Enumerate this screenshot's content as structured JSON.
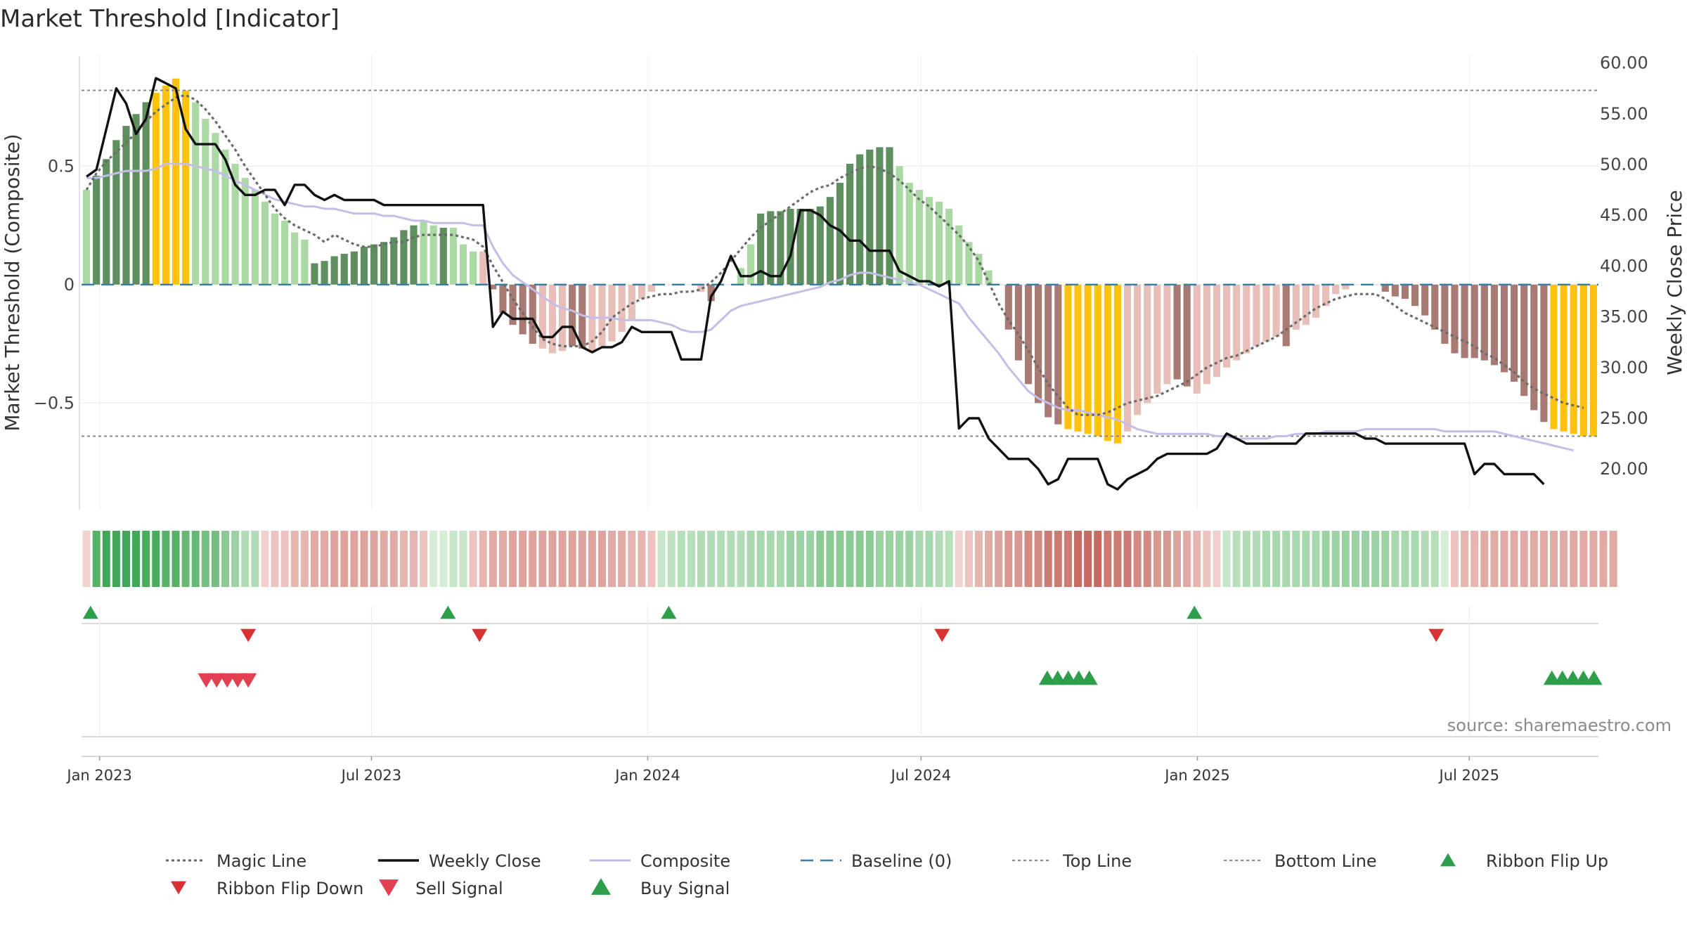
{
  "title": "Market Threshold [Indicator]",
  "source": "source: sharemaestro.com",
  "chart_data": {
    "type": "bar",
    "title": "Market Threshold [Indicator]",
    "ylabel": "Market Threshold (Composite)",
    "y2label": "Weekly Close Price",
    "ylim": [
      -0.95,
      0.97
    ],
    "y2lim": [
      16.0,
      60.8
    ],
    "yticks": [
      {
        "value": 0.5,
        "label": "0.5"
      },
      {
        "value": 0,
        "label": "0"
      },
      {
        "value": -0.5,
        "label": "−0.5"
      }
    ],
    "y2ticks": [
      {
        "value": 60,
        "label": "60.00"
      },
      {
        "value": 55,
        "label": "55.00"
      },
      {
        "value": 50,
        "label": "50.00"
      },
      {
        "value": 45,
        "label": "45.00"
      },
      {
        "value": 40,
        "label": "40.00"
      },
      {
        "value": 35,
        "label": "35.00"
      },
      {
        "value": 30,
        "label": "30.00"
      },
      {
        "value": 25,
        "label": "25.00"
      },
      {
        "value": 20,
        "label": "20.00"
      }
    ],
    "xticks": [
      {
        "date": "2023-01-01",
        "label": "Jan 2023"
      },
      {
        "date": "2023-07-01",
        "label": "Jul 2023"
      },
      {
        "date": "2024-01-01",
        "label": "Jan 2024"
      },
      {
        "date": "2024-07-01",
        "label": "Jul 2024"
      },
      {
        "date": "2025-01-01",
        "label": "Jan 2025"
      },
      {
        "date": "2025-07-01",
        "label": "Jul 2025"
      }
    ],
    "x_start": "2022-12-20",
    "x_end": "2025-09-25",
    "top_line": 0.82,
    "bottom_line": -0.64,
    "baseline": 0,
    "composite_bars": [
      0.4,
      0.46,
      0.53,
      0.61,
      0.67,
      0.72,
      0.77,
      0.81,
      0.84,
      0.87,
      0.82,
      0.77,
      0.7,
      0.64,
      0.57,
      0.51,
      0.45,
      0.4,
      0.35,
      0.3,
      0.27,
      0.22,
      0.19,
      0.09,
      0.1,
      0.12,
      0.13,
      0.14,
      0.16,
      0.17,
      0.18,
      0.2,
      0.23,
      0.25,
      0.27,
      0.25,
      0.24,
      0.24,
      0.17,
      0.14,
      0.14,
      -0.02,
      -0.12,
      -0.17,
      -0.21,
      -0.25,
      -0.27,
      -0.29,
      -0.28,
      -0.26,
      -0.27,
      -0.28,
      -0.26,
      -0.24,
      -0.2,
      -0.15,
      -0.06,
      -0.03,
      0,
      0,
      0,
      0,
      -0.03,
      -0.07,
      0,
      0,
      0.07,
      0.17,
      0.3,
      0.31,
      0.31,
      0.32,
      0.32,
      0.32,
      0.33,
      0.37,
      0.43,
      0.51,
      0.55,
      0.57,
      0.58,
      0.58,
      0.5,
      0.43,
      0.4,
      0.37,
      0.35,
      0.32,
      0.25,
      0.18,
      0.13,
      0.06,
      0,
      -0.19,
      -0.32,
      -0.42,
      -0.5,
      -0.56,
      -0.59,
      -0.61,
      -0.62,
      -0.63,
      -0.64,
      -0.66,
      -0.67,
      -0.62,
      -0.55,
      -0.5,
      -0.46,
      -0.42,
      -0.4,
      -0.43,
      -0.46,
      -0.42,
      -0.39,
      -0.35,
      -0.32,
      -0.29,
      -0.26,
      -0.24,
      -0.22,
      -0.26,
      -0.19,
      -0.17,
      -0.14,
      -0.09,
      -0.04,
      -0.02,
      0,
      0,
      0,
      -0.03,
      -0.05,
      -0.06,
      -0.09,
      -0.13,
      -0.19,
      -0.25,
      -0.29,
      -0.31,
      -0.31,
      -0.32,
      -0.34,
      -0.37,
      -0.41,
      -0.47,
      -0.53,
      -0.58,
      -0.61,
      -0.62,
      -0.63,
      -0.64,
      -0.64
    ],
    "bar_colors": [
      "#abd9a4",
      "#5f8f5f",
      "#5f8f5f",
      "#5f8f5f",
      "#5f8f5f",
      "#5f8f5f",
      "#5f8f5f",
      "#ffc20e",
      "#ffc20e",
      "#ffc20e",
      "#ffc20e",
      "#abd9a4",
      "#abd9a4",
      "#abd9a4",
      "#abd9a4",
      "#abd9a4",
      "#abd9a4",
      "#abd9a4",
      "#abd9a4",
      "#abd9a4",
      "#abd9a4",
      "#abd9a4",
      "#abd9a4",
      "#5f8f5f",
      "#5f8f5f",
      "#5f8f5f",
      "#5f8f5f",
      "#5f8f5f",
      "#5f8f5f",
      "#5f8f5f",
      "#5f8f5f",
      "#5f8f5f",
      "#5f8f5f",
      "#5f8f5f",
      "#abd9a4",
      "#abd9a4",
      "#5f8f5f",
      "#abd9a4",
      "#abd9a4",
      "#abd9a4",
      "#e8bfb8",
      "#a87a74",
      "#a87a74",
      "#a87a74",
      "#a87a74",
      "#a87a74",
      "#e8bfb8",
      "#e8bfb8",
      "#e8bfb8",
      "#a87a74",
      "#a87a74",
      "#e8bfb8",
      "#e8bfb8",
      "#e8bfb8",
      "#e8bfb8",
      "#e8bfb8",
      "#e8bfb8",
      "#e8bfb8",
      "#e8bfb8",
      "#e8bfb8",
      "#e8bfb8",
      "#e8bfb8",
      "#e8bfb8",
      "#a87a74",
      "#abd9a4",
      "#abd9a4",
      "#abd9a4",
      "#abd9a4",
      "#5f8f5f",
      "#5f8f5f",
      "#5f8f5f",
      "#5f8f5f",
      "#5f8f5f",
      "#5f8f5f",
      "#5f8f5f",
      "#5f8f5f",
      "#5f8f5f",
      "#5f8f5f",
      "#5f8f5f",
      "#5f8f5f",
      "#5f8f5f",
      "#5f8f5f",
      "#abd9a4",
      "#abd9a4",
      "#abd9a4",
      "#abd9a4",
      "#abd9a4",
      "#abd9a4",
      "#abd9a4",
      "#abd9a4",
      "#abd9a4",
      "#abd9a4",
      "#e8bfb8",
      "#a87a74",
      "#a87a74",
      "#a87a74",
      "#a87a74",
      "#a87a74",
      "#a87a74",
      "#ffc20e",
      "#ffc20e",
      "#ffc20e",
      "#ffc20e",
      "#ffc20e",
      "#ffc20e",
      "#e8bfb8",
      "#e8bfb8",
      "#e8bfb8",
      "#e8bfb8",
      "#e8bfb8",
      "#a87a74",
      "#a87a74",
      "#e8bfb8",
      "#e8bfb8",
      "#e8bfb8",
      "#e8bfb8",
      "#e8bfb8",
      "#e8bfb8",
      "#e8bfb8",
      "#e8bfb8",
      "#e8bfb8",
      "#a87a74",
      "#e8bfb8",
      "#e8bfb8",
      "#e8bfb8",
      "#e8bfb8",
      "#e8bfb8",
      "#e8bfb8",
      "#e8bfb8",
      "#e8bfb8",
      "#e8bfb8",
      "#a87a74",
      "#a87a74",
      "#a87a74",
      "#a87a74",
      "#a87a74",
      "#a87a74",
      "#a87a74",
      "#a87a74",
      "#a87a74",
      "#a87a74",
      "#a87a74",
      "#a87a74",
      "#a87a74",
      "#a87a74",
      "#a87a74",
      "#a87a74",
      "#a87a74",
      "#ffc20e",
      "#ffc20e",
      "#ffc20e",
      "#ffc20e",
      "#ffc20e"
    ],
    "weekly_close": [
      48.8,
      49.5,
      53.5,
      57.5,
      56.0,
      53.0,
      54.5,
      58.5,
      58.0,
      57.5,
      53.5,
      52.0,
      52.0,
      52.0,
      50.5,
      48.0,
      47.0,
      47.0,
      47.5,
      47.5,
      46.0,
      48.0,
      48.0,
      47.0,
      46.5,
      47.0,
      46.5,
      46.5,
      46.5,
      46.5,
      46.0,
      46.0,
      46.0,
      46.0,
      46.0,
      46.0,
      46.0,
      46.0,
      46.0,
      46.0,
      46.0,
      34.0,
      35.5,
      34.8,
      34.8,
      34.8,
      33.0,
      33.0,
      34.0,
      34.0,
      32.0,
      31.5,
      32.0,
      32.0,
      32.5,
      34.0,
      33.5,
      33.5,
      33.5,
      33.5,
      30.8,
      30.8,
      30.8,
      37.0,
      38.5,
      41.0,
      39.0,
      39.0,
      39.5,
      39.0,
      39.0,
      41.0,
      45.5,
      45.5,
      45.0,
      44.0,
      43.5,
      42.5,
      42.5,
      41.5,
      41.5,
      41.5,
      39.5,
      39.0,
      38.5,
      38.5,
      38.0,
      38.5,
      24.0,
      25.0,
      25.0,
      23.0,
      22.0,
      21.0,
      21.0,
      21.0,
      20.0,
      18.5,
      19.0,
      21.0,
      21.0,
      21.0,
      21.0,
      18.5,
      18.0,
      19.0,
      19.5,
      20.0,
      21.0,
      21.5,
      21.5,
      21.5,
      21.5,
      21.5,
      22.0,
      23.5,
      23.0,
      22.5,
      22.5,
      22.5,
      22.5,
      22.5,
      22.5,
      23.5,
      23.5,
      23.5,
      23.5,
      23.5,
      23.5,
      23.0,
      23.0,
      22.5,
      22.5,
      22.5,
      22.5,
      22.5,
      22.5,
      22.5,
      22.5,
      22.5,
      19.5,
      20.5,
      20.5,
      19.5,
      19.5,
      19.5,
      19.5,
      18.5
    ],
    "magic_line": [
      0.4,
      0.47,
      0.52,
      0.56,
      0.6,
      0.64,
      0.69,
      0.73,
      0.76,
      0.79,
      0.8,
      0.78,
      0.74,
      0.69,
      0.63,
      0.57,
      0.5,
      0.44,
      0.38,
      0.32,
      0.28,
      0.25,
      0.23,
      0.21,
      0.18,
      0.21,
      0.19,
      0.17,
      0.16,
      0.16,
      0.17,
      0.18,
      0.18,
      0.2,
      0.21,
      0.21,
      0.21,
      0.21,
      0.2,
      0.19,
      0.16,
      0.08,
      0.01,
      -0.06,
      -0.12,
      -0.18,
      -0.23,
      -0.25,
      -0.26,
      -0.26,
      -0.26,
      -0.24,
      -0.2,
      -0.14,
      -0.11,
      -0.08,
      -0.06,
      -0.05,
      -0.04,
      -0.04,
      -0.03,
      -0.03,
      -0.02,
      0.01,
      0.05,
      0.1,
      0.15,
      0.2,
      0.24,
      0.27,
      0.3,
      0.33,
      0.36,
      0.39,
      0.41,
      0.42,
      0.45,
      0.47,
      0.49,
      0.5,
      0.49,
      0.47,
      0.44,
      0.4,
      0.36,
      0.33,
      0.29,
      0.25,
      0.21,
      0.16,
      0.1,
      0.01,
      -0.08,
      -0.15,
      -0.21,
      -0.28,
      -0.35,
      -0.42,
      -0.47,
      -0.52,
      -0.55,
      -0.55,
      -0.55,
      -0.54,
      -0.52,
      -0.5,
      -0.49,
      -0.48,
      -0.47,
      -0.45,
      -0.43,
      -0.41,
      -0.38,
      -0.35,
      -0.33,
      -0.31,
      -0.3,
      -0.28,
      -0.26,
      -0.24,
      -0.22,
      -0.19,
      -0.16,
      -0.13,
      -0.1,
      -0.08,
      -0.06,
      -0.05,
      -0.04,
      -0.04,
      -0.04,
      -0.06,
      -0.09,
      -0.12,
      -0.14,
      -0.16,
      -0.18,
      -0.2,
      -0.22,
      -0.24,
      -0.26,
      -0.29,
      -0.31,
      -0.34,
      -0.37,
      -0.41,
      -0.44,
      -0.46,
      -0.48,
      -0.5,
      -0.51,
      -0.52
    ],
    "composite_line": [
      0.45,
      0.45,
      0.46,
      0.47,
      0.48,
      0.48,
      0.48,
      0.49,
      0.51,
      0.51,
      0.51,
      0.5,
      0.49,
      0.48,
      0.46,
      0.44,
      0.42,
      0.4,
      0.38,
      0.36,
      0.35,
      0.34,
      0.33,
      0.33,
      0.32,
      0.32,
      0.31,
      0.3,
      0.3,
      0.3,
      0.29,
      0.29,
      0.28,
      0.27,
      0.27,
      0.26,
      0.26,
      0.26,
      0.26,
      0.25,
      0.25,
      0.16,
      0.09,
      0.04,
      0.01,
      -0.02,
      -0.05,
      -0.08,
      -0.1,
      -0.11,
      -0.13,
      -0.14,
      -0.14,
      -0.14,
      -0.15,
      -0.15,
      -0.15,
      -0.15,
      -0.16,
      -0.17,
      -0.19,
      -0.2,
      -0.2,
      -0.19,
      -0.15,
      -0.11,
      -0.09,
      -0.08,
      -0.07,
      -0.06,
      -0.05,
      -0.04,
      -0.03,
      -0.02,
      -0.01,
      0.01,
      0.02,
      0.04,
      0.05,
      0.05,
      0.04,
      0.03,
      0.02,
      0.01,
      0.0,
      -0.02,
      -0.04,
      -0.06,
      -0.08,
      -0.14,
      -0.19,
      -0.24,
      -0.29,
      -0.35,
      -0.4,
      -0.45,
      -0.48,
      -0.5,
      -0.52,
      -0.53,
      -0.53,
      -0.54,
      -0.55,
      -0.56,
      -0.57,
      -0.59,
      -0.61,
      -0.62,
      -0.63,
      -0.63,
      -0.63,
      -0.63,
      -0.63,
      -0.63,
      -0.64,
      -0.64,
      -0.65,
      -0.65,
      -0.65,
      -0.65,
      -0.64,
      -0.64,
      -0.63,
      -0.63,
      -0.63,
      -0.62,
      -0.62,
      -0.62,
      -0.62,
      -0.61,
      -0.61,
      -0.61,
      -0.61,
      -0.61,
      -0.61,
      -0.61,
      -0.61,
      -0.62,
      -0.62,
      -0.62,
      -0.62,
      -0.62,
      -0.62,
      -0.63,
      -0.64,
      -0.65,
      -0.66,
      -0.67,
      -0.68,
      -0.69,
      -0.7
    ],
    "ribbon_colors": [
      "#f2d3d0",
      "#57b267",
      "#41a656",
      "#41a656",
      "#41a656",
      "#41a656",
      "#49ab5c",
      "#49ab5c",
      "#57b267",
      "#57b267",
      "#66b974",
      "#66b974",
      "#73bf80",
      "#73bf80",
      "#8bca95",
      "#9bd2a3",
      "#b1dcb7",
      "#b1dcb7",
      "#f1d0cc",
      "#ecc3be",
      "#ecc3be",
      "#e6b5b0",
      "#e6b5b0",
      "#e1aaa4",
      "#e1aaa4",
      "#dea39d",
      "#dea39d",
      "#dea39d",
      "#dea39d",
      "#dea39d",
      "#e1aaa4",
      "#e1aaa4",
      "#e6b5b0",
      "#e6b5b0",
      "#ecc3be",
      "#d5ecd6",
      "#d5ecd6",
      "#c7e5c9",
      "#c7e5c9",
      "#ecc3be",
      "#e6b5b0",
      "#e1aaa4",
      "#e1aaa4",
      "#dea39d",
      "#dea39d",
      "#dea39d",
      "#dea39d",
      "#dea39d",
      "#dea39d",
      "#dea39d",
      "#dea39d",
      "#dea39d",
      "#dea39d",
      "#e1aaa4",
      "#e1aaa4",
      "#e6b5b0",
      "#e6b5b0",
      "#ecc3be",
      "#c7e5c9",
      "#bfe2c2",
      "#b6dfba",
      "#b6dfba",
      "#b1dcb7",
      "#b1dcb7",
      "#b1dcb7",
      "#b1dcb7",
      "#b1dcb7",
      "#a8d8ae",
      "#a8d8ae",
      "#a8d8ae",
      "#a8d8ae",
      "#9bd2a3",
      "#9bd2a3",
      "#9bd2a3",
      "#8bca95",
      "#8bca95",
      "#8bca95",
      "#8bca95",
      "#8bca95",
      "#8bca95",
      "#9bd2a3",
      "#9bd2a3",
      "#9bd2a3",
      "#9bd2a3",
      "#a8d8ae",
      "#a8d8ae",
      "#b1dcb7",
      "#b6dfba",
      "#f2d3d0",
      "#ecc3be",
      "#e6b5b0",
      "#e1aaa4",
      "#dea39d",
      "#d99791",
      "#d99791",
      "#d38a83",
      "#d38a83",
      "#cc7b73",
      "#cc7b73",
      "#cc7b73",
      "#c56b62",
      "#c56b62",
      "#c56b62",
      "#cc7b73",
      "#cc7b73",
      "#cc7b73",
      "#d38a83",
      "#d38a83",
      "#d99791",
      "#d99791",
      "#dea39d",
      "#e1aaa4",
      "#e6b5b0",
      "#ecc3be",
      "#f1d0cc",
      "#c7e5c9",
      "#b6dfba",
      "#b1dcb7",
      "#b1dcb7",
      "#a8d8ae",
      "#a8d8ae",
      "#a8d8ae",
      "#a8d8ae",
      "#a8d8ae",
      "#a8d8ae",
      "#9bd2a3",
      "#9bd2a3",
      "#9bd2a3",
      "#9bd2a3",
      "#9bd2a3",
      "#9bd2a3",
      "#9bd2a3",
      "#a8d8ae",
      "#a8d8ae",
      "#a8d8ae",
      "#b1dcb7",
      "#b6dfba",
      "#d5ecd6",
      "#ecc3be",
      "#e6b5b0",
      "#e6b5b0",
      "#e1aaa4",
      "#e1aaa4",
      "#e1aaa4",
      "#e1aaa4",
      "#e1aaa4",
      "#e1aaa4",
      "#e1aaa4",
      "#e1aaa4",
      "#e1aaa4",
      "#e1aaa4",
      "#e1aaa4",
      "#e1aaa4",
      "#e1aaa4",
      "#e1aaa4"
    ],
    "ribbon_flip_up": [
      "2022-12-26",
      "2023-08-21",
      "2024-01-15",
      "2024-12-30"
    ],
    "ribbon_flip_down": [
      "2023-04-10",
      "2023-09-11",
      "2024-07-15",
      "2025-06-09"
    ],
    "sell_signal": [
      "2023-03-13",
      "2023-03-20",
      "2023-03-27",
      "2023-04-03",
      "2023-04-10"
    ],
    "buy_signal": [
      "2024-09-23",
      "2024-09-30",
      "2024-10-07",
      "2024-10-14",
      "2024-10-21",
      "2025-08-25",
      "2025-09-01",
      "2025-09-08",
      "2025-09-15",
      "2025-09-22"
    ],
    "colors": {
      "bull_strong": "#5f8f5f",
      "bull_weak": "#abd9a4",
      "bear_strong": "#a87a74",
      "bear_weak": "#e8bfb8",
      "extreme": "#ffc20e",
      "weekly_close": "#111111",
      "composite": "#c4bde6",
      "magic_line": "#6b6b6b",
      "baseline": "#3b7ea1",
      "threshold_lines": "#8a8a8a",
      "flip_up": "#2e9e4a",
      "flip_down": "#d83232",
      "sell": "#e04050",
      "buy": "#2e9e4a"
    }
  },
  "legend": [
    {
      "key": "magic",
      "label": "Magic Line",
      "icon": "dotted-line"
    },
    {
      "key": "close",
      "label": "Weekly Close",
      "icon": "solid-line"
    },
    {
      "key": "composite",
      "label": "Composite",
      "icon": "lavender-line"
    },
    {
      "key": "baseline",
      "label": "Baseline (0)",
      "icon": "dashed-line"
    },
    {
      "key": "top",
      "label": "Top Line",
      "icon": "dotted-line"
    },
    {
      "key": "bottom",
      "label": "Bottom Line",
      "icon": "dotted-line"
    },
    {
      "key": "flipup",
      "label": "Ribbon Flip Up",
      "icon": "triangle-up-icon"
    },
    {
      "key": "flipdown",
      "label": "Ribbon Flip Down",
      "icon": "triangle-down-icon"
    },
    {
      "key": "sell",
      "label": "Sell Signal",
      "icon": "triangle-down-icon"
    },
    {
      "key": "buy",
      "label": "Buy Signal",
      "icon": "triangle-up-icon"
    }
  ]
}
